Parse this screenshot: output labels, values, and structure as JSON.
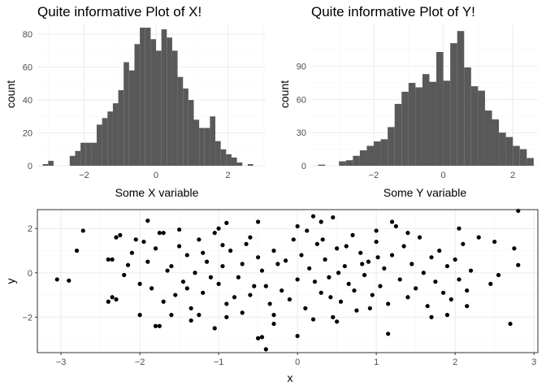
{
  "colors": {
    "bar": "#595959",
    "point": "#000000",
    "panel_border": "#333333"
  },
  "chart_data": [
    {
      "type": "bar",
      "title": "Quite informative Plot of X!",
      "xlabel": "Some X variable",
      "ylabel": "count",
      "xlim": [
        -3.3,
        3.05
      ],
      "ylim": [
        0,
        86
      ],
      "xticks": [
        -2,
        0,
        2
      ],
      "yticks": [
        0,
        20,
        40,
        60,
        80
      ],
      "bin_start": -3.15,
      "bin_width": 0.15,
      "values": [
        1,
        3,
        0,
        0,
        0,
        6,
        9,
        14,
        14,
        14,
        25,
        29,
        33,
        38,
        46,
        63,
        58,
        74,
        84,
        84,
        77,
        70,
        83,
        78,
        70,
        54,
        47,
        40,
        28,
        23,
        23,
        30,
        15,
        10,
        7,
        5,
        2,
        0,
        1,
        0,
        0,
        0
      ]
    },
    {
      "type": "bar",
      "title": "Quite informative Plot of Y!",
      "xlabel": "Some Y variable",
      "ylabel": "count",
      "xlim": [
        -3.8,
        2.72
      ],
      "ylim": [
        0,
        128
      ],
      "xticks": [
        -2,
        0,
        2
      ],
      "yticks": [
        0,
        30,
        60,
        90
      ],
      "bin_start": -3.6,
      "bin_width": 0.2,
      "values": [
        1,
        0,
        0,
        4,
        5,
        9,
        14,
        18,
        22,
        24,
        35,
        56,
        67,
        75,
        71,
        83,
        76,
        103,
        77,
        111,
        122,
        89,
        72,
        68,
        50,
        42,
        30,
        26,
        18,
        15,
        7,
        0,
        0
      ]
    },
    {
      "type": "scatter",
      "title": "",
      "xlabel": "x",
      "ylabel": "y",
      "xlim": [
        -3.3,
        3.05
      ],
      "ylim": [
        -3.6,
        2.85
      ],
      "xticks": [
        -3,
        -2,
        -1,
        0,
        1,
        2,
        3
      ],
      "yticks": [
        -2,
        0,
        2
      ],
      "points": [
        [
          -2.9,
          -0.35
        ],
        [
          -3.05,
          -0.3
        ],
        [
          -2.8,
          1.0
        ],
        [
          -2.72,
          1.9
        ],
        [
          -2.3,
          1.6
        ],
        [
          -2.25,
          1.7
        ],
        [
          -2.4,
          0.6
        ],
        [
          -2.35,
          0.6
        ],
        [
          -2.4,
          -1.3
        ],
        [
          -2.35,
          -1.1
        ],
        [
          -2.3,
          -1.2
        ],
        [
          -2.15,
          0.35
        ],
        [
          -2.05,
          1.5
        ],
        [
          -1.9,
          2.35
        ],
        [
          -1.75,
          1.8
        ],
        [
          -1.7,
          1.8
        ],
        [
          -2.0,
          -1.9
        ],
        [
          -1.8,
          -2.4
        ],
        [
          -1.75,
          -2.4
        ],
        [
          -1.6,
          -1.9
        ],
        [
          -1.5,
          1.95
        ],
        [
          -0.9,
          2.25
        ],
        [
          -0.5,
          2.3
        ],
        [
          0.2,
          2.55
        ],
        [
          0.45,
          2.5
        ],
        [
          1.2,
          2.3
        ],
        [
          1.25,
          2.1
        ],
        [
          2.05,
          2.0
        ],
        [
          2.3,
          1.6
        ],
        [
          2.5,
          1.4
        ],
        [
          2.8,
          2.8
        ],
        [
          2.75,
          1.1
        ],
        [
          2.7,
          -2.3
        ],
        [
          2.45,
          -0.5
        ],
        [
          2.55,
          -0.1
        ],
        [
          2.8,
          0.35
        ],
        [
          -0.5,
          -2.95
        ],
        [
          -0.45,
          -2.9
        ],
        [
          -0.4,
          -3.45
        ],
        [
          0.0,
          -2.85
        ],
        [
          -0.3,
          -2.3
        ],
        [
          0.2,
          -2.1
        ],
        [
          1.15,
          -2.75
        ],
        [
          0.45,
          -2.0
        ],
        [
          -1.05,
          -2.5
        ],
        [
          -0.9,
          -2.0
        ],
        [
          -1.35,
          -2.15
        ],
        [
          1.7,
          -2.0
        ],
        [
          1.9,
          -1.9
        ],
        [
          2.15,
          -1.5
        ],
        [
          -1.4,
          -0.7
        ],
        [
          -1.2,
          0.9
        ],
        [
          -1.1,
          -0.2
        ],
        [
          -0.95,
          1.25
        ],
        [
          -0.8,
          -1.1
        ],
        [
          -0.7,
          0.4
        ],
        [
          -0.6,
          1.6
        ],
        [
          -0.55,
          -0.6
        ],
        [
          -0.45,
          0.1
        ],
        [
          -0.35,
          -1.4
        ],
        [
          -0.3,
          1.0
        ],
        [
          -0.2,
          -0.8
        ],
        [
          -0.15,
          0.55
        ],
        [
          -0.05,
          1.5
        ],
        [
          0.0,
          -0.3
        ],
        [
          0.05,
          0.8
        ],
        [
          0.1,
          -1.6
        ],
        [
          0.15,
          0.2
        ],
        [
          0.25,
          1.3
        ],
        [
          0.3,
          -0.9
        ],
        [
          0.35,
          0.6
        ],
        [
          0.4,
          -0.2
        ],
        [
          0.5,
          1.1
        ],
        [
          0.55,
          -1.3
        ],
        [
          0.6,
          0.3
        ],
        [
          0.65,
          -0.5
        ],
        [
          0.7,
          1.7
        ],
        [
          0.75,
          -1.7
        ],
        [
          0.8,
          0.9
        ],
        [
          0.85,
          -0.1
        ],
        [
          0.9,
          0.5
        ],
        [
          0.95,
          -1.0
        ],
        [
          1.0,
          1.4
        ],
        [
          1.05,
          -0.6
        ],
        [
          1.1,
          0.2
        ],
        [
          1.15,
          -1.4
        ],
        [
          1.2,
          0.8
        ],
        [
          1.3,
          -0.3
        ],
        [
          1.35,
          1.2
        ],
        [
          1.4,
          -1.1
        ],
        [
          1.45,
          0.4
        ],
        [
          1.5,
          -0.7
        ],
        [
          1.55,
          1.6
        ],
        [
          1.6,
          0.0
        ],
        [
          1.65,
          -1.5
        ],
        [
          1.7,
          0.7
        ],
        [
          1.75,
          -0.4
        ],
        [
          1.8,
          1.0
        ],
        [
          1.85,
          -0.9
        ],
        [
          1.9,
          0.3
        ],
        [
          1.95,
          -1.2
        ],
        [
          2.0,
          0.6
        ],
        [
          2.05,
          -0.3
        ],
        [
          2.1,
          1.3
        ],
        [
          2.15,
          -0.8
        ],
        [
          2.2,
          0.1
        ],
        [
          -1.6,
          0.3
        ],
        [
          -1.55,
          -1.0
        ],
        [
          -1.5,
          1.2
        ],
        [
          -1.45,
          -0.4
        ],
        [
          -1.4,
          0.8
        ],
        [
          -1.35,
          -1.6
        ],
        [
          -1.3,
          0.0
        ],
        [
          -1.25,
          1.5
        ],
        [
          -1.2,
          -0.9
        ],
        [
          -1.15,
          0.5
        ],
        [
          -1.05,
          1.8
        ],
        [
          -1.0,
          -0.5
        ],
        [
          -0.95,
          0.3
        ],
        [
          -0.9,
          -1.4
        ],
        [
          -0.85,
          1.0
        ],
        [
          -0.75,
          -0.2
        ],
        [
          -0.65,
          1.3
        ],
        [
          -0.6,
          -1.0
        ],
        [
          -0.5,
          0.7
        ],
        [
          -0.4,
          -0.6
        ],
        [
          -0.25,
          0.4
        ],
        [
          -0.1,
          -1.2
        ],
        [
          0.12,
          1.9
        ],
        [
          0.22,
          -0.4
        ],
        [
          0.32,
          1.5
        ],
        [
          0.42,
          -1.1
        ],
        [
          0.52,
          0.0
        ],
        [
          0.62,
          1.2
        ],
        [
          0.72,
          -0.8
        ],
        [
          0.82,
          0.4
        ],
        [
          0.92,
          -1.6
        ],
        [
          1.02,
          0.7
        ],
        [
          -1.9,
          0.5
        ],
        [
          -1.85,
          -0.7
        ],
        [
          -1.8,
          1.1
        ],
        [
          -1.7,
          -1.3
        ],
        [
          -1.65,
          0.1
        ],
        [
          -2.0,
          -0.5
        ],
        [
          -2.1,
          0.9
        ],
        [
          -2.2,
          -0.1
        ],
        [
          -1.95,
          1.4
        ],
        [
          -0.7,
          -1.8
        ],
        [
          0.0,
          2.1
        ],
        [
          0.5,
          -2.2
        ],
        [
          1.0,
          1.9
        ],
        [
          -0.3,
          -1.9
        ],
        [
          0.3,
          2.3
        ],
        [
          -1.0,
          2.0
        ],
        [
          1.4,
          1.8
        ],
        [
          -1.25,
          -1.9
        ]
      ]
    }
  ]
}
